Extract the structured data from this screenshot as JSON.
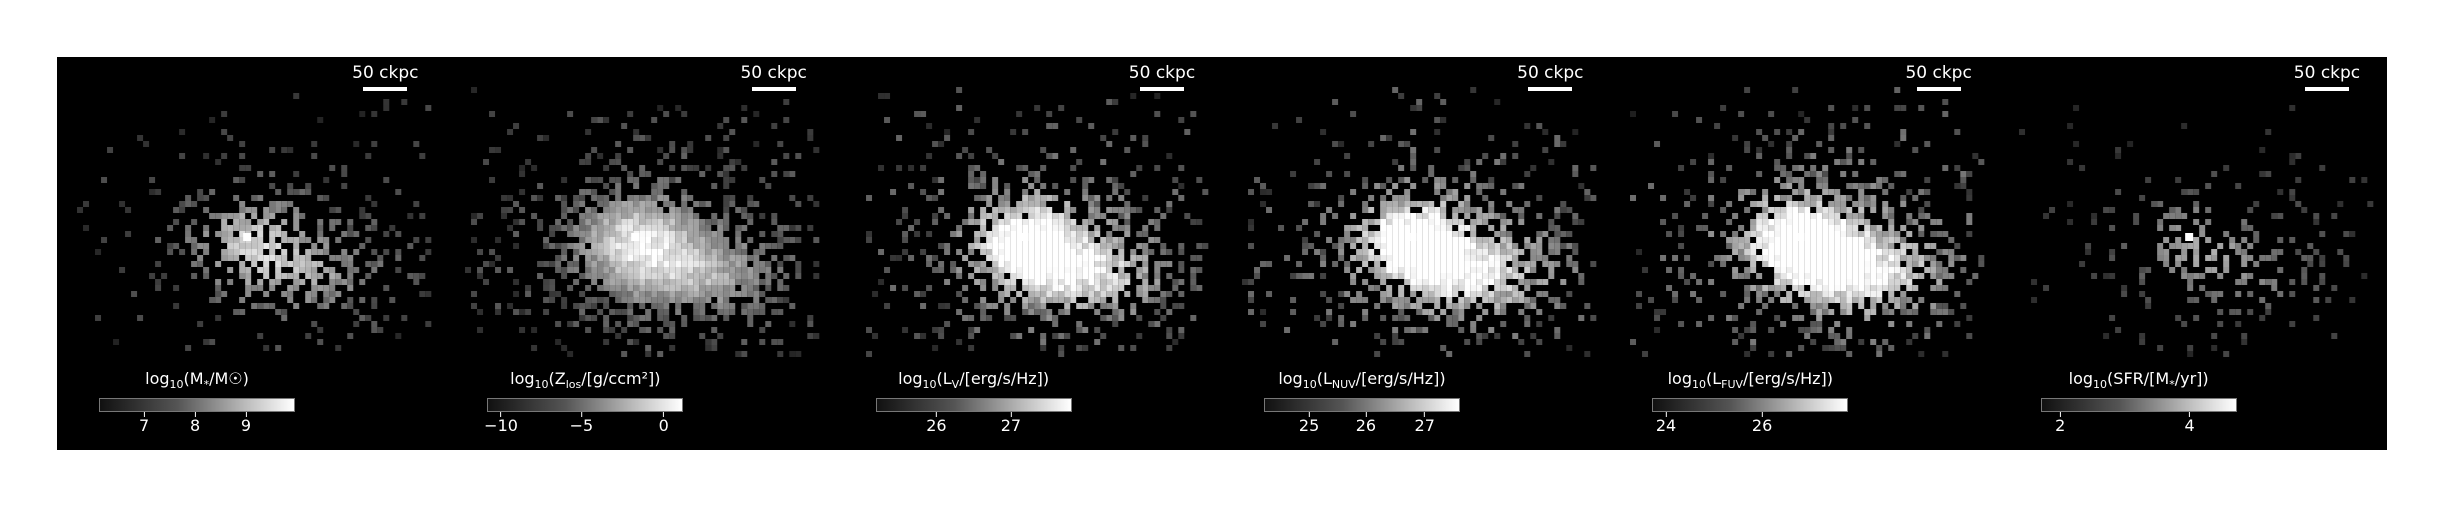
{
  "scalebar_label": "50 ckpc",
  "panels": [
    {
      "quantity": "stellar-mass",
      "label_pre": "log",
      "label_sub1": "10",
      "label_mid": "(M",
      "label_sub2": "*",
      "label_post": "/M☉)",
      "ticks": [
        {
          "label": "7",
          "frac": 0.23
        },
        {
          "label": "8",
          "frac": 0.49
        },
        {
          "label": "9",
          "frac": 0.75
        }
      ],
      "brightness": 0.55,
      "density": 0.45,
      "core": 1.0
    },
    {
      "quantity": "metallicity",
      "label_pre": "log",
      "label_sub1": "10",
      "label_mid": "(Z",
      "label_sub2": "los",
      "label_post": "/[g/ccm²])",
      "ticks": [
        {
          "label": "−10",
          "frac": 0.07
        },
        {
          "label": "−5",
          "frac": 0.48
        },
        {
          "label": "0",
          "frac": 0.9
        }
      ],
      "brightness": 0.65,
      "density": 1.0,
      "core": 1.0
    },
    {
      "quantity": "v-band-luminosity",
      "label_pre": "log",
      "label_sub1": "10",
      "label_mid": "(L",
      "label_sub2": "V",
      "label_post": "/[erg/s/Hz])",
      "ticks": [
        {
          "label": "26",
          "frac": 0.31
        },
        {
          "label": "27",
          "frac": 0.69
        }
      ],
      "brightness": 0.85,
      "density": 0.8,
      "core": 1.0
    },
    {
      "quantity": "nuv-luminosity",
      "label_pre": "log",
      "label_sub1": "10",
      "label_mid": "(L",
      "label_sub2": "NUV",
      "label_post": "/[erg/s/Hz])",
      "ticks": [
        {
          "label": "25",
          "frac": 0.23
        },
        {
          "label": "26",
          "frac": 0.52
        },
        {
          "label": "27",
          "frac": 0.82
        }
      ],
      "brightness": 0.9,
      "density": 0.85,
      "core": 0.9
    },
    {
      "quantity": "fuv-luminosity",
      "label_pre": "log",
      "label_sub1": "10",
      "label_mid": "(L",
      "label_sub2": "FUV",
      "label_post": "/[erg/s/Hz])",
      "ticks": [
        {
          "label": "24",
          "frac": 0.07
        },
        {
          "label": "26",
          "frac": 0.56
        }
      ],
      "brightness": 0.95,
      "density": 0.9,
      "core": 0.9
    },
    {
      "quantity": "star-formation-rate",
      "label_pre": "log",
      "label_sub1": "10",
      "label_mid": "(SFR/[M",
      "label_sub2": "*",
      "label_post": "/yr])",
      "ticks": [
        {
          "label": "2",
          "frac": 0.1
        },
        {
          "label": "4",
          "frac": 0.76
        }
      ],
      "brightness": 0.4,
      "density": 0.25,
      "core": 1.0
    }
  ]
}
